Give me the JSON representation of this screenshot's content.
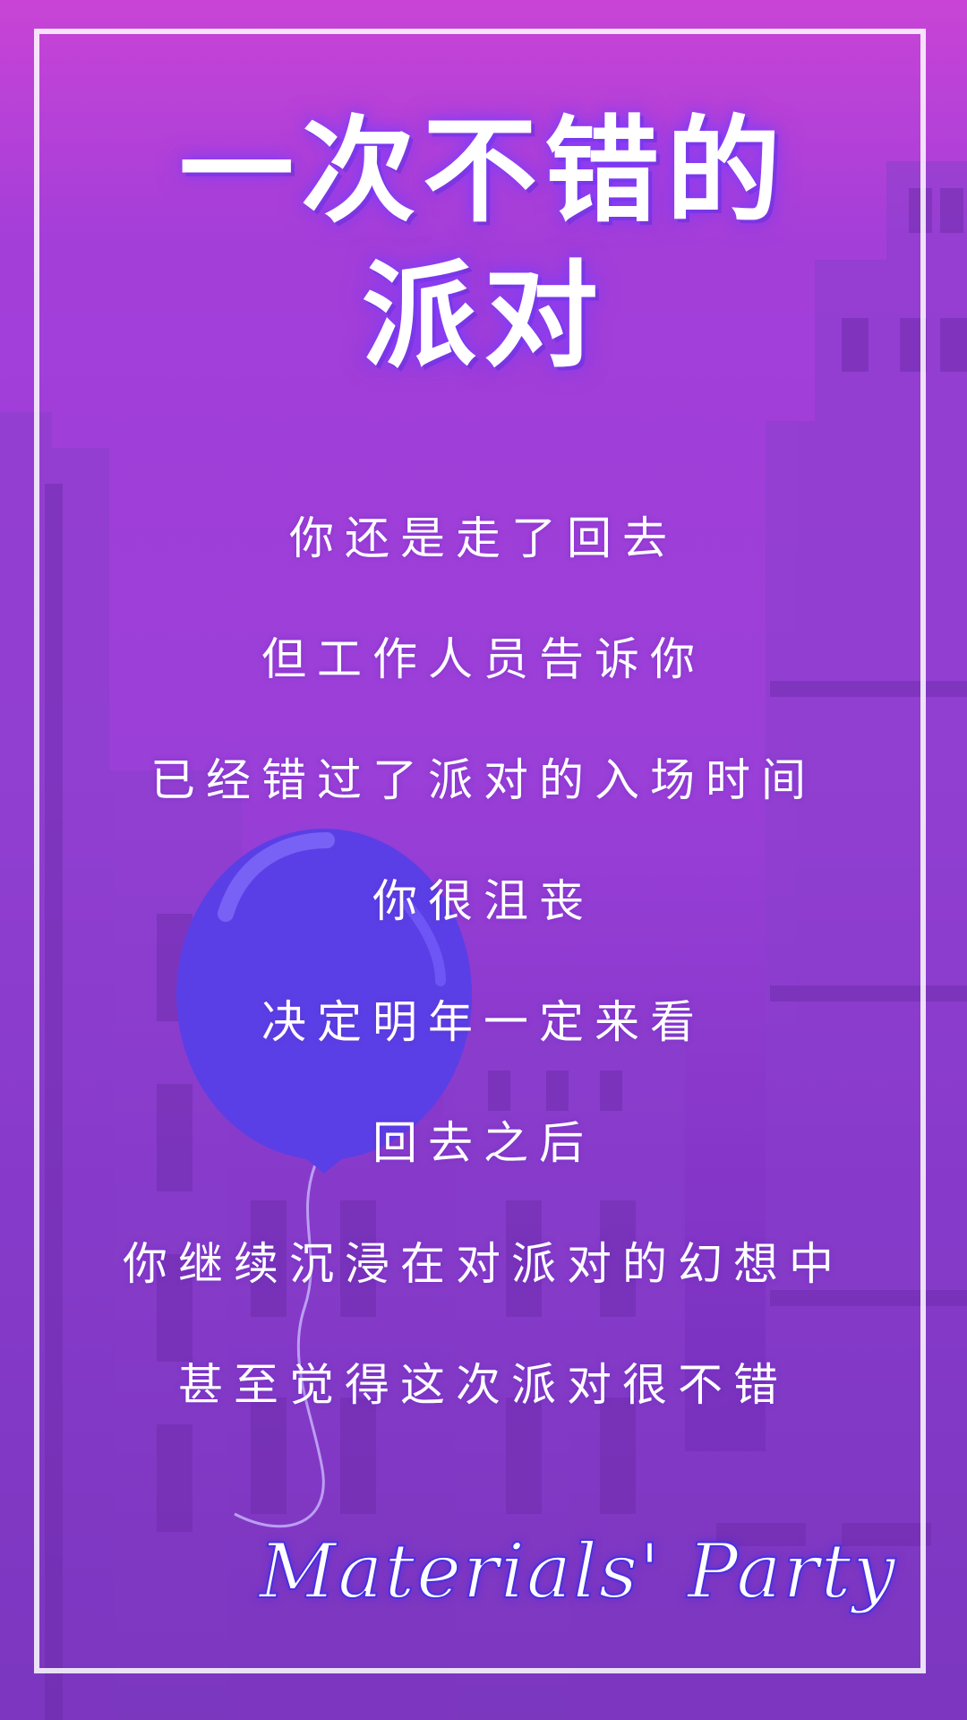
{
  "colors": {
    "background_top": "#c844d6",
    "background_bottom": "#6b2db0",
    "building": "#8a3fcc",
    "balloon": "#5b3fe6",
    "frame": "#ffffff",
    "text": "#ffffff"
  },
  "title": {
    "line1": "一次不错的",
    "line2": "派对"
  },
  "lines": [
    "你还是走了回去",
    "但工作人员告诉你",
    "已经错过了派对的入场时间",
    "你很沮丧",
    "决定明年一定来看",
    "回去之后",
    "你继续沉浸在对派对的幻想中",
    "甚至觉得这次派对很不错"
  ],
  "brand": "Materials' Party"
}
